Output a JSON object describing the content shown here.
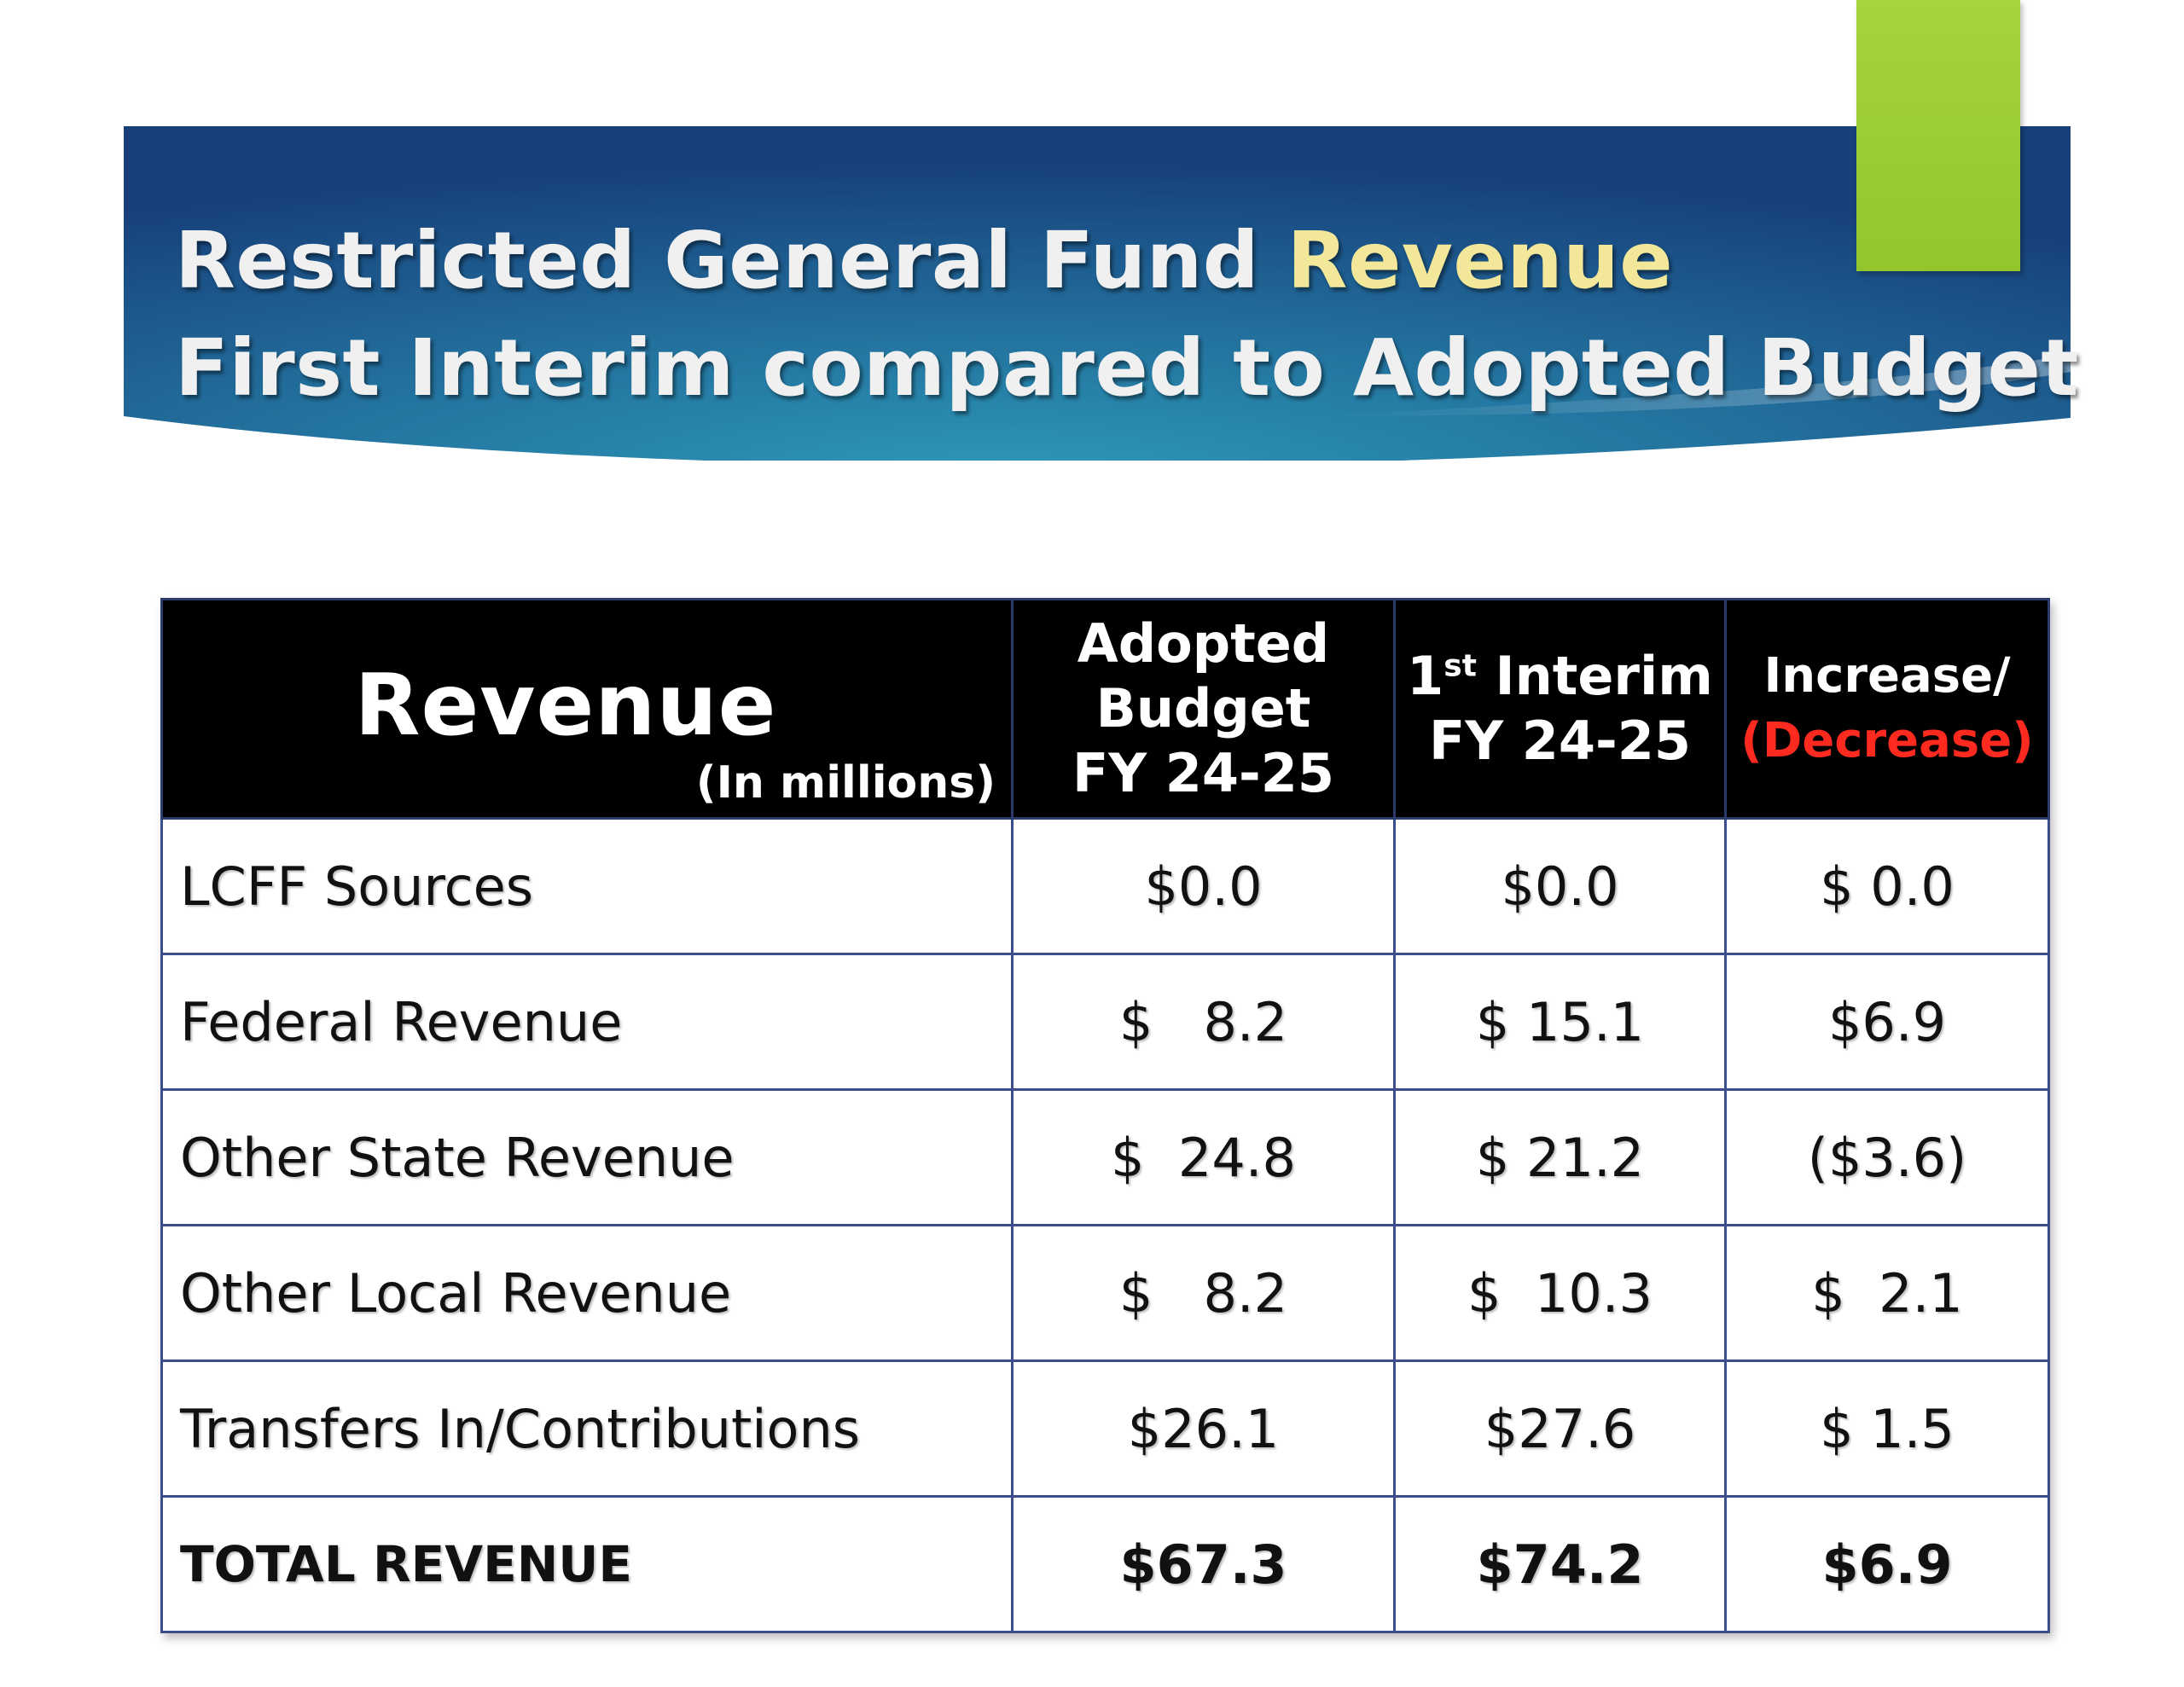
{
  "title": {
    "line1_prefix": "Restricted General Fund ",
    "line1_highlight": "Revenue",
    "line2": "First Interim compared to Adopted Budget"
  },
  "colors": {
    "banner_dark": "#1a4f86",
    "banner_light": "#2e8db0",
    "title_text": "#f0f0f0",
    "title_highlight": "#f3e89a",
    "accent_tab": "#9ccb33",
    "table_header_bg": "#000000",
    "table_border": "#3b4d8a",
    "decrease_red": "#e8201a"
  },
  "table": {
    "headers": {
      "revenue": "Revenue",
      "revenue_unit": "(In millions)",
      "adopted_line1": "Adopted",
      "adopted_line2": "Budget",
      "adopted_line3": "FY 24-25",
      "interim_num": "1",
      "interim_sup": "st",
      "interim_rest": " Interim",
      "interim_line2": "FY 24-25",
      "change_line1": "Increase/",
      "change_line2": "(Decrease)"
    },
    "rows": [
      {
        "label": "LCFF Sources",
        "adopted": "$0.0",
        "interim": "$0.0",
        "change": "$ 0.0"
      },
      {
        "label": "Federal Revenue",
        "adopted": "$   8.2",
        "interim": "$ 15.1",
        "change": "$6.9"
      },
      {
        "label": "Other State Revenue",
        "adopted": "$  24.8",
        "interim": "$ 21.2",
        "change": "($3.6)"
      },
      {
        "label": "Other Local Revenue",
        "adopted": "$   8.2",
        "interim": "$  10.3",
        "change": "$  2.1"
      },
      {
        "label": "Transfers In/Contributions",
        "adopted": "$26.1",
        "interim": "$27.6",
        "change": "$ 1.5"
      }
    ],
    "total": {
      "label": "TOTAL REVENUE",
      "adopted": "$67.3",
      "interim": "$74.2",
      "change": "$6.9"
    }
  }
}
